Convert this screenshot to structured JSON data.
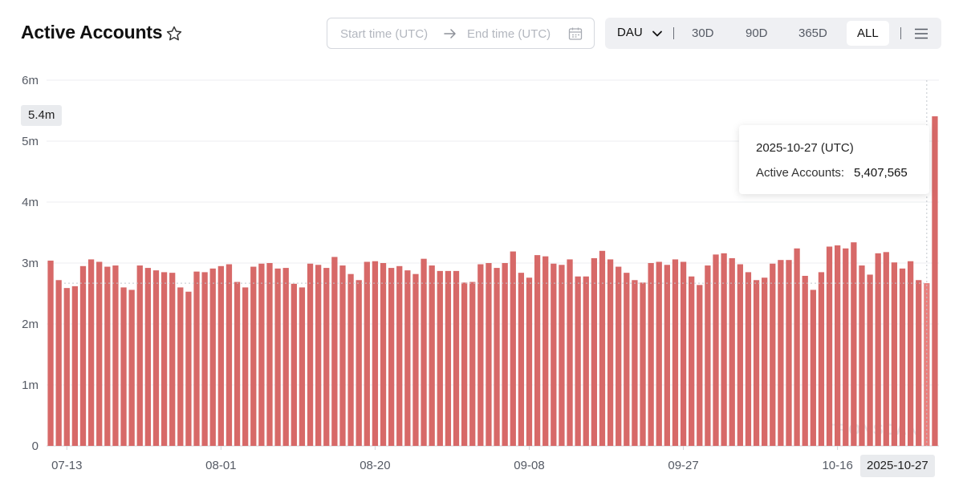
{
  "header": {
    "title": "Active Accounts",
    "star_icon": "star-outline-icon",
    "start_placeholder": "Start time (UTC)",
    "end_placeholder": "End time (UTC)",
    "arrow_icon": "arrow-right-icon",
    "calendar_icon": "calendar-icon",
    "metric_select": "DAU",
    "tabs": [
      "30D",
      "90D",
      "365D",
      "ALL"
    ],
    "active_tab": "ALL",
    "menu_icon": "hamburger-menu-icon"
  },
  "tooltip": {
    "date": "2025-10-27 (UTC)",
    "label": "Active Accounts:",
    "value": "5,407,565"
  },
  "crosshair": {
    "y_label": "5.4m",
    "x_label": "2025-10-27"
  },
  "watermark": "TRONSCAN",
  "colors": {
    "bar": "#d76968",
    "bar_highlight": "#e7807e",
    "tab_active_bg": "#ffffff",
    "tab_group_bg": "#eff0f3"
  },
  "chart_data": {
    "type": "bar",
    "start_date": "2025-07-11",
    "end_date": "2025-10-27",
    "ylim": [
      0,
      6000000
    ],
    "y_ticks": [
      "0",
      "1m",
      "2m",
      "3m",
      "4m",
      "5m",
      "6m"
    ],
    "x_tick_labels": [
      "07-13",
      "08-01",
      "08-20",
      "09-08",
      "09-27",
      "10-16"
    ],
    "highlight_date": "2025-10-27",
    "series": [
      {
        "values": [
          3040000,
          2720000,
          2590000,
          2620000,
          2950000,
          3060000,
          3020000,
          2940000,
          2960000,
          2600000,
          2560000,
          2960000,
          2920000,
          2880000,
          2850000,
          2840000,
          2600000,
          2530000,
          2860000,
          2850000,
          2910000,
          2950000,
          2980000,
          2690000,
          2600000,
          2940000,
          2990000,
          3000000,
          2910000,
          2920000,
          2660000,
          2600000,
          2990000,
          2970000,
          2920000,
          3100000,
          2960000,
          2820000,
          2720000,
          3020000,
          3030000,
          3000000,
          2920000,
          2950000,
          2880000,
          2820000,
          3070000,
          2960000,
          2870000,
          2870000,
          2870000,
          2680000,
          2690000,
          2980000,
          3000000,
          2920000,
          3000000,
          3190000,
          2840000,
          2760000,
          3130000,
          3110000,
          2990000,
          2970000,
          3060000,
          2780000,
          2780000,
          3080000,
          3200000,
          3060000,
          2940000,
          2840000,
          2720000,
          2680000,
          3000000,
          3020000,
          2970000,
          3060000,
          3020000,
          2780000,
          2640000,
          2960000,
          3140000,
          3160000,
          3080000,
          2980000,
          2850000,
          2720000,
          2760000,
          2990000,
          3050000,
          3050000,
          3240000,
          2790000,
          2560000,
          2850000,
          3270000,
          3290000,
          3240000,
          3340000,
          2960000,
          2810000,
          3160000,
          3180000,
          3010000,
          2910000,
          3030000,
          2720000,
          2670000,
          5407565
        ]
      }
    ]
  }
}
